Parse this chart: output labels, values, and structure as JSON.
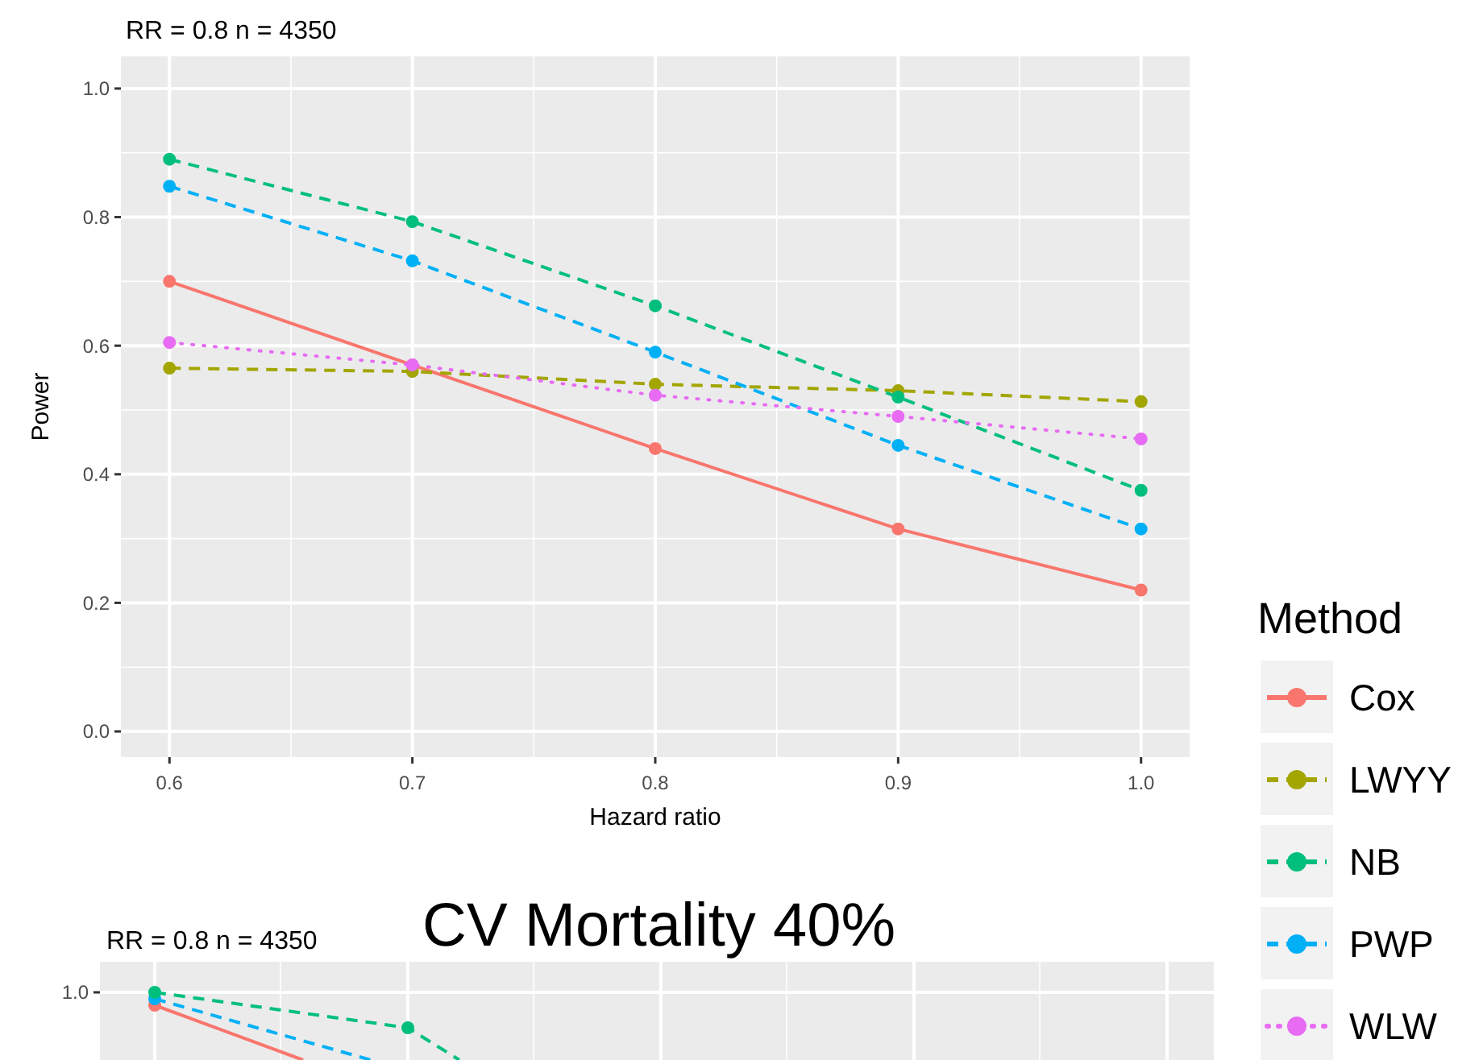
{
  "chart_data": [
    {
      "type": "line",
      "subtitle": "RR = 0.8   n = 4350",
      "xlabel": "Hazard ratio",
      "ylabel": "Power",
      "legend_title": "Method",
      "legend": "right",
      "grid": true,
      "marker": "circle",
      "x": [
        0.6,
        0.7,
        0.8,
        0.9,
        1.0
      ],
      "xlim": [
        0.58,
        1.02
      ],
      "xticks": [
        {
          "value": 0.6,
          "label": "0.6"
        },
        {
          "value": 0.7,
          "label": "0.7"
        },
        {
          "value": 0.8,
          "label": "0.8"
        },
        {
          "value": 0.9,
          "label": "0.9"
        },
        {
          "value": 1.0,
          "label": "1.0"
        }
      ],
      "ylim": [
        -0.04,
        1.05
      ],
      "yticks": [
        {
          "value": 0,
          "label": "0.0"
        },
        {
          "value": 0.2,
          "label": "0.2"
        },
        {
          "value": 0.4,
          "label": "0.4"
        },
        {
          "value": 0.6,
          "label": "0.6"
        },
        {
          "value": 0.8,
          "label": "0.8"
        },
        {
          "value": 1.0,
          "label": "1.0"
        }
      ],
      "series": [
        {
          "name": "Cox",
          "color": "#f8766d",
          "line_style": "solid",
          "values": [
            0.7,
            0.57,
            0.44,
            0.315,
            0.22
          ]
        },
        {
          "name": "LWYY",
          "color": "#a3a500",
          "line_style": "dashed",
          "values": [
            0.565,
            0.56,
            0.54,
            0.53,
            0.513
          ]
        },
        {
          "name": "NB",
          "color": "#00bf7d",
          "line_style": "dashed",
          "values": [
            0.89,
            0.793,
            0.662,
            0.52,
            0.375
          ]
        },
        {
          "name": "PWP",
          "color": "#00b0f6",
          "line_style": "dashed",
          "values": [
            0.848,
            0.732,
            0.59,
            0.445,
            0.315
          ]
        },
        {
          "name": "WLW",
          "color": "#e76bf3",
          "line_style": "dotted",
          "values": [
            0.605,
            0.57,
            0.523,
            0.49,
            0.455
          ]
        }
      ]
    },
    {
      "type": "other",
      "title": "CV Mortality 40%",
      "subtitle": "RR = 0.8   n = 4350",
      "annotations": [
        "1.0"
      ]
    }
  ]
}
